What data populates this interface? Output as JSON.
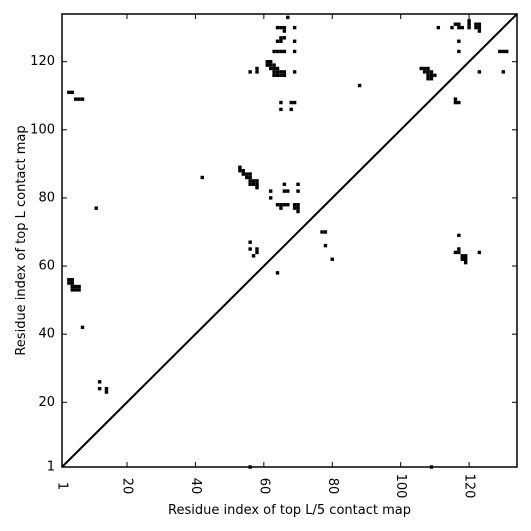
{
  "chart_data": {
    "type": "scatter",
    "xlabel": "Residue index of top L/5 contact map",
    "ylabel": "Residue index of top L contact map",
    "xlim": [
      1,
      134
    ],
    "ylim": [
      1,
      134
    ],
    "x_ticks": [
      {
        "value": 1,
        "label": "1"
      },
      {
        "value": 20,
        "label": "20"
      },
      {
        "value": 40,
        "label": "40"
      },
      {
        "value": 60,
        "label": "60"
      },
      {
        "value": 80,
        "label": "80"
      },
      {
        "value": 100,
        "label": "100"
      },
      {
        "value": 120,
        "label": "120"
      }
    ],
    "y_ticks": [
      {
        "value": 1,
        "label": "1"
      },
      {
        "value": 20,
        "label": "20"
      },
      {
        "value": 40,
        "label": "40"
      },
      {
        "value": 60,
        "label": "60"
      },
      {
        "value": 80,
        "label": "80"
      },
      {
        "value": 100,
        "label": "100"
      },
      {
        "value": 120,
        "label": "120"
      }
    ],
    "diagonal": true,
    "grid": false,
    "marker_color": "#000000",
    "points": [
      [
        3,
        111
      ],
      [
        4,
        111
      ],
      [
        5,
        109
      ],
      [
        6,
        109
      ],
      [
        7,
        109
      ],
      [
        3,
        56
      ],
      [
        4,
        56
      ],
      [
        3,
        55
      ],
      [
        4,
        55
      ],
      [
        4,
        54
      ],
      [
        5,
        54
      ],
      [
        4,
        53
      ],
      [
        5,
        53
      ],
      [
        6,
        53
      ],
      [
        6,
        54
      ],
      [
        7,
        42
      ],
      [
        11,
        77
      ],
      [
        12,
        26
      ],
      [
        12,
        24
      ],
      [
        14,
        24
      ],
      [
        14,
        23
      ],
      [
        42,
        86
      ],
      [
        53,
        89
      ],
      [
        53,
        88
      ],
      [
        54,
        88
      ],
      [
        54,
        87
      ],
      [
        55,
        87
      ],
      [
        55,
        86
      ],
      [
        56,
        86
      ],
      [
        56,
        87
      ],
      [
        56,
        85
      ],
      [
        57,
        85
      ],
      [
        58,
        85
      ],
      [
        56,
        84
      ],
      [
        57,
        84
      ],
      [
        58,
        84
      ],
      [
        58,
        83
      ],
      [
        56,
        67
      ],
      [
        56,
        65
      ],
      [
        57,
        63
      ],
      [
        58,
        65
      ],
      [
        58,
        64
      ],
      [
        56,
        1
      ],
      [
        56,
        117
      ],
      [
        58,
        118
      ],
      [
        58,
        117
      ],
      [
        61,
        120
      ],
      [
        62,
        120
      ],
      [
        61,
        119
      ],
      [
        62,
        119
      ],
      [
        63,
        119
      ],
      [
        62,
        118
      ],
      [
        63,
        118
      ],
      [
        64,
        118
      ],
      [
        63,
        117
      ],
      [
        64,
        117
      ],
      [
        65,
        117
      ],
      [
        66,
        117
      ],
      [
        63,
        116
      ],
      [
        64,
        116
      ],
      [
        65,
        116
      ],
      [
        66,
        116
      ],
      [
        63,
        123
      ],
      [
        64,
        123
      ],
      [
        65,
        123
      ],
      [
        66,
        123
      ],
      [
        65,
        127
      ],
      [
        66,
        127
      ],
      [
        65,
        126
      ],
      [
        64,
        126
      ],
      [
        64,
        130
      ],
      [
        65,
        130
      ],
      [
        66,
        130
      ],
      [
        67,
        133
      ],
      [
        66,
        129
      ],
      [
        62,
        82
      ],
      [
        62,
        80
      ],
      [
        66,
        84
      ],
      [
        66,
        82
      ],
      [
        67,
        82
      ],
      [
        64,
        78
      ],
      [
        65,
        78
      ],
      [
        66,
        78
      ],
      [
        67,
        78
      ],
      [
        65,
        77
      ],
      [
        64,
        58
      ],
      [
        69,
        78
      ],
      [
        70,
        78
      ],
      [
        69,
        77
      ],
      [
        70,
        77
      ],
      [
        70,
        76
      ],
      [
        70,
        84
      ],
      [
        70,
        82
      ],
      [
        65,
        108
      ],
      [
        65,
        106
      ],
      [
        68,
        108
      ],
      [
        69,
        108
      ],
      [
        68,
        106
      ],
      [
        69,
        130
      ],
      [
        69,
        126
      ],
      [
        69,
        123
      ],
      [
        69,
        117
      ],
      [
        77,
        70
      ],
      [
        78,
        70
      ],
      [
        78,
        66
      ],
      [
        80,
        62
      ],
      [
        88,
        113
      ],
      [
        106,
        118
      ],
      [
        107,
        118
      ],
      [
        108,
        118
      ],
      [
        107,
        117
      ],
      [
        108,
        117
      ],
      [
        109,
        117
      ],
      [
        108,
        116
      ],
      [
        109,
        116
      ],
      [
        110,
        116
      ],
      [
        108,
        115
      ],
      [
        109,
        115
      ],
      [
        109,
        1
      ],
      [
        111,
        130
      ],
      [
        115,
        130
      ],
      [
        116,
        131
      ],
      [
        117,
        131
      ],
      [
        117,
        130
      ],
      [
        118,
        130
      ],
      [
        117,
        126
      ],
      [
        117,
        123
      ],
      [
        116,
        109
      ],
      [
        116,
        108
      ],
      [
        117,
        108
      ],
      [
        116,
        64
      ],
      [
        117,
        64
      ],
      [
        117,
        65
      ],
      [
        117,
        69
      ],
      [
        118,
        63
      ],
      [
        118,
        62
      ],
      [
        119,
        63
      ],
      [
        119,
        62
      ],
      [
        119,
        61
      ],
      [
        120,
        132
      ],
      [
        120,
        131
      ],
      [
        120,
        130
      ],
      [
        122,
        131
      ],
      [
        123,
        131
      ],
      [
        122,
        130
      ],
      [
        123,
        130
      ],
      [
        123,
        129
      ],
      [
        123,
        117
      ],
      [
        123,
        64
      ],
      [
        129,
        123
      ],
      [
        130,
        123
      ],
      [
        131,
        123
      ],
      [
        130,
        117
      ]
    ]
  }
}
